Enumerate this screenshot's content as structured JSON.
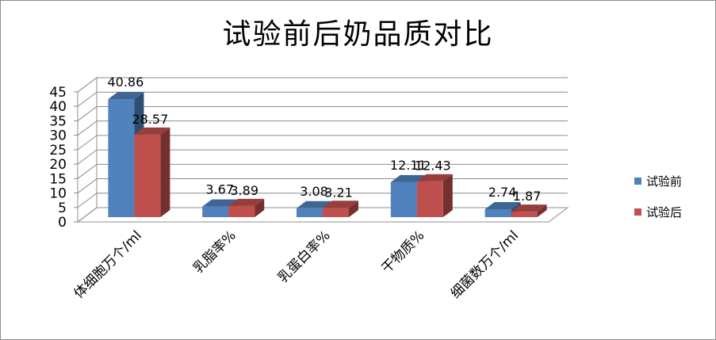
{
  "chart_data": {
    "type": "bar",
    "title": "试验前后奶品质对比",
    "categories": [
      "体细胞万个/ml",
      "乳脂率%",
      "乳蛋白率%",
      "干物质%",
      "细菌数万个/ml"
    ],
    "series": [
      {
        "name": "试验前",
        "values": [
          40.86,
          3.67,
          3.08,
          12.11,
          2.74
        ],
        "labels": [
          "40.86",
          "3.67",
          "3.08",
          "12.11",
          "2.74"
        ],
        "color": "#4f81bd"
      },
      {
        "name": "试验后",
        "values": [
          28.57,
          3.89,
          3.21,
          12.43,
          1.87
        ],
        "labels": [
          "28.57",
          "3.89",
          "3.21",
          "12.43",
          "1.87"
        ],
        "color": "#c0504d"
      }
    ],
    "yticks": [
      "0",
      "5",
      "10",
      "15",
      "20",
      "25",
      "30",
      "35",
      "40",
      "45"
    ],
    "ylim": [
      0,
      45
    ],
    "grid": true,
    "legend": "right"
  }
}
